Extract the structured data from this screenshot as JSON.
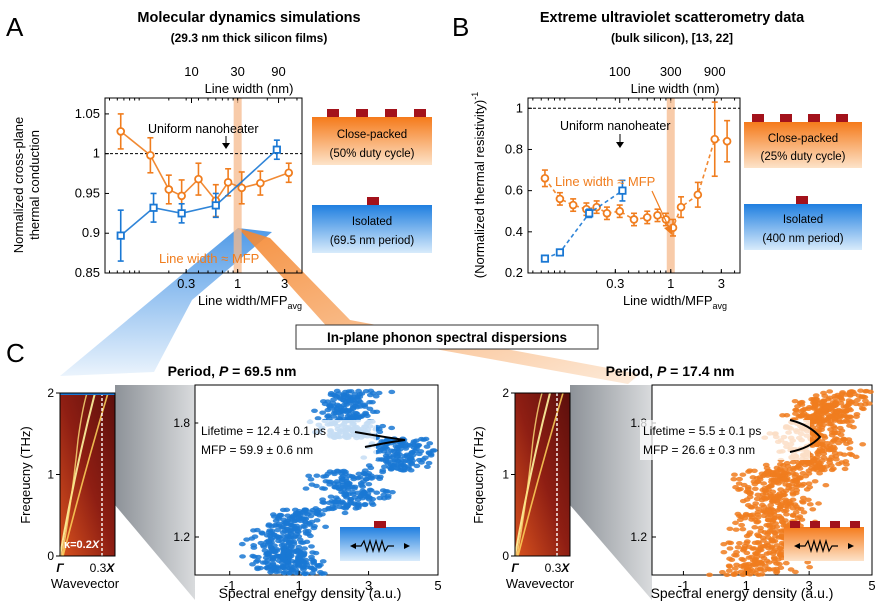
{
  "panel_letters": {
    "a": "A",
    "b": "B",
    "c": "C"
  },
  "panel_a": {
    "title": "Molecular dynamics simulations",
    "subtitle": "(29.3 nm thick silicon films)",
    "top_axis_label": "Line width (nm)",
    "top_ticks": [
      "10",
      "30",
      "90"
    ],
    "xlabel_main": "Line width/MFP",
    "xlabel_sub": "avg",
    "ylabel_line1": "Normalized cross-plane",
    "ylabel_line2": "thermal conduction",
    "uniform_label": "Uniform nanoheater",
    "mfp_label": "Line width ≈ MFP",
    "close_label_1": "Close-packed",
    "close_label_2": "(50% duty cycle)",
    "isolated_label_1": "Isolated",
    "isolated_label_2": "(69.5 nm period)"
  },
  "panel_b": {
    "title": "Extreme ultraviolet scatterometry data",
    "subtitle": "(bulk silicon), [13, 22]",
    "top_axis_label": "Line width (nm)",
    "top_ticks": [
      "100",
      "300",
      "900"
    ],
    "xlabel_main": "Line width/MFP",
    "xlabel_sub": "avg",
    "ylabel_main": "(Normalized thermal resistivity)",
    "ylabel_sup": "-1",
    "uniform_label": "Uniform nanoheater",
    "mfp_label": "Line width ≈ MFP",
    "close_label_1": "Close-packed",
    "close_label_2": "(25% duty cycle)",
    "isolated_label_1": "Isolated",
    "isolated_label_2": "(400 nm period)"
  },
  "panel_c": {
    "banner": "In-plane phonon spectral dispersions",
    "left": {
      "period_prefix": "Period, ",
      "period_var": "P",
      "period_value": " = 69.5 nm",
      "lifetime": "Lifetime = 12.4 ± 0.1  ps",
      "mfp": "MFP = 59.9 ± 0.6  nm"
    },
    "right": {
      "period_prefix": "Period, ",
      "period_var": "P",
      "period_value": " = 17.4 nm",
      "lifetime": "Lifetime = 5.5  ± 0.1  ps",
      "mfp": "MFP = 26.6  ± 0.3  nm"
    },
    "dispersion_ylabel": "Freqeucny (THz)",
    "dispersion_xlabel": "Wavevector",
    "dispersion_ticks": [
      "2",
      "1",
      "0"
    ],
    "kappa_label": "κ=0.2",
    "kappa_X": "X",
    "gamma_label": "Γ",
    "x_tick_label": "0.3",
    "x_tick_X": "X",
    "scatter_xlabel": "Spectral energy density (a.u.)"
  },
  "colors": {
    "orange": "#f07d1e",
    "blue": "#1a78d4",
    "dark_red": "#a3121b",
    "mfp_band": "#f6b98c"
  },
  "chart_data": [
    {
      "type": "line",
      "panel": "A",
      "title": "Molecular dynamics simulations",
      "xlabel": "Line width/MFPavg",
      "ylabel": "Normalized cross-plane thermal conduction",
      "xscale": "log",
      "xlim": [
        0.045,
        4.5
      ],
      "ylim": [
        0.85,
        1.07
      ],
      "x_ticks": [
        "0.3",
        "1",
        "3"
      ],
      "y_ticks": [
        "0.85",
        "0.9",
        "0.95",
        "1",
        "1.05"
      ],
      "reference_line": {
        "label": "Uniform nanoheater",
        "y": 1.0
      },
      "series": [
        {
          "name": "Close-packed (50% duty cycle)",
          "color": "#f07d1e",
          "marker": "circle",
          "x": [
            0.065,
            0.13,
            0.2,
            0.27,
            0.4,
            0.6,
            0.8,
            1.1,
            1.7,
            3.3
          ],
          "y": [
            1.028,
            0.998,
            0.955,
            0.947,
            0.968,
            0.941,
            0.964,
            0.957,
            0.963,
            0.976
          ],
          "err": [
            0.022,
            0.022,
            0.018,
            0.02,
            0.02,
            0.02,
            0.017,
            0.02,
            0.015,
            0.012
          ]
        },
        {
          "name": "Isolated (69.5 nm period)",
          "color": "#1a78d4",
          "marker": "square",
          "x": [
            0.065,
            0.14,
            0.27,
            0.6,
            2.5
          ],
          "y": [
            0.897,
            0.932,
            0.925,
            0.935,
            1.005
          ],
          "err": [
            0.032,
            0.018,
            0.012,
            0.015,
            0.012
          ]
        }
      ]
    },
    {
      "type": "line",
      "panel": "B",
      "title": "Extreme ultraviolet scatterometry data",
      "xlabel": "Line width/MFPavg",
      "ylabel": "(Normalized thermal resistivity)-1",
      "xscale": "log",
      "xlim": [
        0.045,
        4.5
      ],
      "ylim": [
        0.2,
        1.05
      ],
      "x_ticks": [
        "0.3",
        "1",
        "3"
      ],
      "y_ticks": [
        "0.2",
        "0.4",
        "0.6",
        "0.8",
        "1"
      ],
      "reference_line": {
        "label": "Uniform nanoheater",
        "y": 1.0
      },
      "series": [
        {
          "name": "Close-packed (25% duty cycle)",
          "color": "#f07d1e",
          "marker": "circle",
          "x": [
            0.065,
            0.09,
            0.12,
            0.16,
            0.2,
            0.25,
            0.33,
            0.45,
            0.6,
            0.75,
            0.9,
            1.05,
            1.25,
            1.8,
            2.6,
            3.4
          ],
          "y": [
            0.66,
            0.56,
            0.53,
            0.51,
            0.52,
            0.49,
            0.5,
            0.46,
            0.47,
            0.48,
            0.46,
            0.42,
            0.52,
            0.58,
            0.85,
            0.84
          ],
          "err": [
            0.04,
            0.03,
            0.03,
            0.03,
            0.03,
            0.03,
            0.03,
            0.03,
            0.03,
            0.03,
            0.03,
            0.04,
            0.05,
            0.06,
            0.18,
            0.1
          ]
        },
        {
          "name": "Isolated (400 nm period)",
          "color": "#1a78d4",
          "marker": "square",
          "x": [
            0.065,
            0.09,
            0.17,
            0.35
          ],
          "y": [
            0.27,
            0.3,
            0.49,
            0.6
          ],
          "err": [
            0.01,
            0.01,
            0.02,
            0.05
          ]
        }
      ]
    },
    {
      "type": "scatter",
      "panel": "C-left",
      "title": "Period, P = 69.5 nm",
      "xlabel": "Spectral energy density (a.u.)",
      "xlim": [
        -2,
        5
      ],
      "ylim": [
        1.0,
        2.0
      ],
      "x_ticks": [
        "-1",
        "1",
        "3",
        "5"
      ],
      "y_ticks": [
        "1.2",
        "1.8"
      ],
      "color": "#1a78d4",
      "lifetime_ps": 12.4,
      "mfp_nm": 59.9
    },
    {
      "type": "scatter",
      "panel": "C-right",
      "title": "Period, P = 17.4 nm",
      "xlabel": "Spectral energy density (a.u.)",
      "xlim": [
        -2,
        5
      ],
      "ylim": [
        1.0,
        2.0
      ],
      "x_ticks": [
        "-1",
        "1",
        "3",
        "5"
      ],
      "y_ticks": [
        "1.2",
        "1.8"
      ],
      "color": "#f07d1e",
      "lifetime_ps": 5.5,
      "mfp_nm": 26.6
    }
  ]
}
